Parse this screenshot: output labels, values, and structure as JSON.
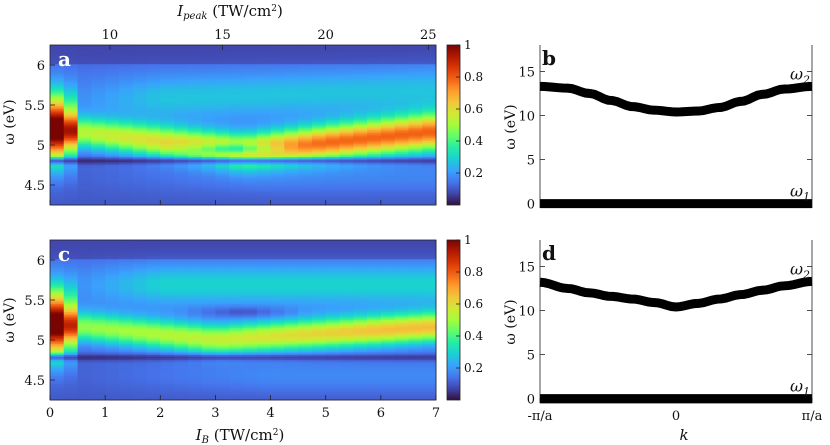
{
  "colormap": [
    "#30123b",
    "#4145ab",
    "#4675ed",
    "#39a2fc",
    "#1bcfd4",
    "#24eca6",
    "#61fc6c",
    "#a4fc3b",
    "#d1e834",
    "#f3c63a",
    "#fe9b2d",
    "#f36315",
    "#d93806",
    "#b11901",
    "#7a0402"
  ],
  "top_axis": {
    "label_main": "I",
    "label_sub": "peak",
    "label_unit": " (TW/cm",
    "label_sup": "2",
    "label_close": ")"
  },
  "panels_heatmap": {
    "y_axis_label": "ω (eV)",
    "x_axis_label_main": "I",
    "x_axis_label_sub": "B",
    "x_axis_label_unit": " (TW/cm",
    "x_axis_label_sup": "2",
    "x_axis_label_close": ")"
  },
  "panels_band": {
    "y_axis_label": "ω (eV)",
    "x_axis_label": "k",
    "omega2_label": "ω",
    "omega2_sub": "2",
    "omega1_label": "ω",
    "omega1_sub": "1"
  },
  "chart_data": [
    {
      "panel": "a",
      "type": "heatmap",
      "x_range": [
        0,
        7
      ],
      "y_range": [
        4.25,
        6.25
      ],
      "x_ticks": [
        "0",
        "1",
        "2",
        "3",
        "4",
        "5",
        "6",
        "7"
      ],
      "x_tick_values": [
        0,
        1,
        2,
        3,
        4,
        5,
        6,
        7
      ],
      "top_ticks": [
        "10",
        "15",
        "20",
        "25"
      ],
      "top_tick_values": [
        1.086,
        3.128,
        4.998,
        6.86
      ],
      "y_ticks": [
        "4.5",
        "5",
        "5.5",
        "6"
      ],
      "y_tick_values": [
        4.5,
        5,
        5.5,
        6
      ],
      "colorbar_ticks": [
        "0.2",
        "0.4",
        "0.6",
        "0.8",
        "1"
      ],
      "colorbar_values": [
        0.2,
        0.4,
        0.6,
        0.8,
        1.0
      ],
      "columns": 28,
      "rows": 100
    },
    {
      "panel": "b",
      "type": "line",
      "x_range": [
        -3.1416,
        3.1416
      ],
      "y_range": [
        -0.5,
        18
      ],
      "y_ticks": [
        "0",
        "5",
        "10",
        "15"
      ],
      "y_tick_values": [
        0,
        5,
        10,
        15
      ],
      "series": [
        {
          "name": "ω2",
          "x": [
            -3.14,
            -2.5,
            -2.0,
            -1.5,
            -1.0,
            -0.5,
            0,
            0.5,
            1.0,
            1.5,
            2.0,
            2.5,
            3.14
          ],
          "y": [
            13.3,
            13.1,
            12.5,
            11.7,
            11.0,
            10.6,
            10.4,
            10.5,
            10.9,
            11.6,
            12.4,
            13.0,
            13.3
          ]
        },
        {
          "name": "ω1",
          "x": [
            -3.14,
            3.14
          ],
          "y": [
            0,
            0
          ]
        }
      ]
    },
    {
      "panel": "c",
      "type": "heatmap",
      "x_range": [
        0,
        7
      ],
      "y_range": [
        4.25,
        6.25
      ],
      "x_ticks": [
        "0",
        "1",
        "2",
        "3",
        "4",
        "5",
        "6",
        "7"
      ],
      "x_tick_values": [
        0,
        1,
        2,
        3,
        4,
        5,
        6,
        7
      ],
      "y_ticks": [
        "4.5",
        "5",
        "5.5",
        "6"
      ],
      "y_tick_values": [
        4.5,
        5,
        5.5,
        6
      ],
      "colorbar_ticks": [
        "0.2",
        "0.4",
        "0.6",
        "0.8",
        "1"
      ],
      "colorbar_values": [
        0.2,
        0.4,
        0.6,
        0.8,
        1.0
      ],
      "columns": 28,
      "rows": 100
    },
    {
      "panel": "d",
      "type": "line",
      "x_range": [
        -3.1416,
        3.1416
      ],
      "y_range": [
        -0.5,
        18
      ],
      "x_ticks": [
        "-π/a",
        "0",
        "π/a"
      ],
      "x_tick_values": [
        -3.1416,
        0,
        3.1416
      ],
      "y_ticks": [
        "0",
        "5",
        "10",
        "15"
      ],
      "y_tick_values": [
        0,
        5,
        10,
        15
      ],
      "series": [
        {
          "name": "ω2",
          "x": [
            -3.14,
            -2.5,
            -2.0,
            -1.5,
            -1.0,
            -0.5,
            0,
            0.5,
            1.0,
            1.5,
            2.0,
            2.5,
            3.14
          ],
          "y": [
            13.2,
            12.5,
            12.0,
            11.6,
            11.3,
            10.9,
            10.4,
            10.8,
            11.3,
            11.8,
            12.3,
            12.8,
            13.3
          ]
        },
        {
          "name": "ω1",
          "x": [
            -3.14,
            3.14
          ],
          "y": [
            0,
            0
          ]
        }
      ]
    }
  ]
}
